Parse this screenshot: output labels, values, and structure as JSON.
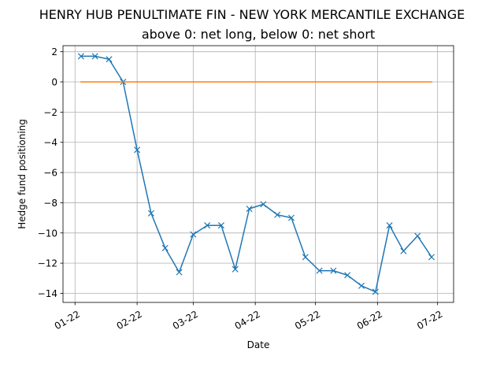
{
  "chart_data": {
    "type": "line",
    "title": "HENRY HUB PENULTIMATE FIN - NEW YORK MERCANTILE EXCHANGE",
    "subtitle": "above 0: net long, below 0: net short",
    "xlabel": "Date",
    "ylabel": "Hedge fund positioning",
    "grid": true,
    "xlim": [
      "2021-12-26",
      "2022-07-09"
    ],
    "ylim": [
      -14.6,
      2.4
    ],
    "x_ticks": [
      {
        "date": "2022-01-01",
        "label": "01-22"
      },
      {
        "date": "2022-02-01",
        "label": "02-22"
      },
      {
        "date": "2022-03-01",
        "label": "03-22"
      },
      {
        "date": "2022-04-01",
        "label": "04-22"
      },
      {
        "date": "2022-05-01",
        "label": "05-22"
      },
      {
        "date": "2022-06-01",
        "label": "06-22"
      },
      {
        "date": "2022-07-01",
        "label": "07-22"
      }
    ],
    "y_ticks": [
      2,
      0,
      -2,
      -4,
      -6,
      -8,
      -10,
      -12,
      -14
    ],
    "y_tick_labels": [
      "2",
      "0",
      "−2",
      "−4",
      "−6",
      "−8",
      "−10",
      "−12",
      "−14"
    ],
    "series": [
      {
        "color": "#1f77b4",
        "marker": "x",
        "x": [
          "2022-01-04",
          "2022-01-11",
          "2022-01-18",
          "2022-01-25",
          "2022-02-01",
          "2022-02-08",
          "2022-02-15",
          "2022-02-22",
          "2022-03-01",
          "2022-03-08",
          "2022-03-15",
          "2022-03-22",
          "2022-03-29",
          "2022-04-05",
          "2022-04-12",
          "2022-04-19",
          "2022-04-26",
          "2022-05-03",
          "2022-05-10",
          "2022-05-17",
          "2022-05-24",
          "2022-05-31",
          "2022-06-07",
          "2022-06-14",
          "2022-06-21",
          "2022-06-28"
        ],
        "y": [
          1.7,
          1.7,
          1.5,
          0.0,
          -4.5,
          -8.7,
          -11.0,
          -12.6,
          -10.1,
          -9.5,
          -9.5,
          -12.4,
          -8.4,
          -8.1,
          -8.8,
          -9.0,
          -11.6,
          -12.5,
          -12.5,
          -12.8,
          -13.5,
          -13.9,
          -9.5,
          -11.2,
          -10.2,
          -11.6
        ]
      },
      {
        "color": "#ff7f0e",
        "marker": "none",
        "x": [
          "2022-01-04",
          "2022-06-28"
        ],
        "y": [
          0,
          0
        ]
      }
    ]
  }
}
